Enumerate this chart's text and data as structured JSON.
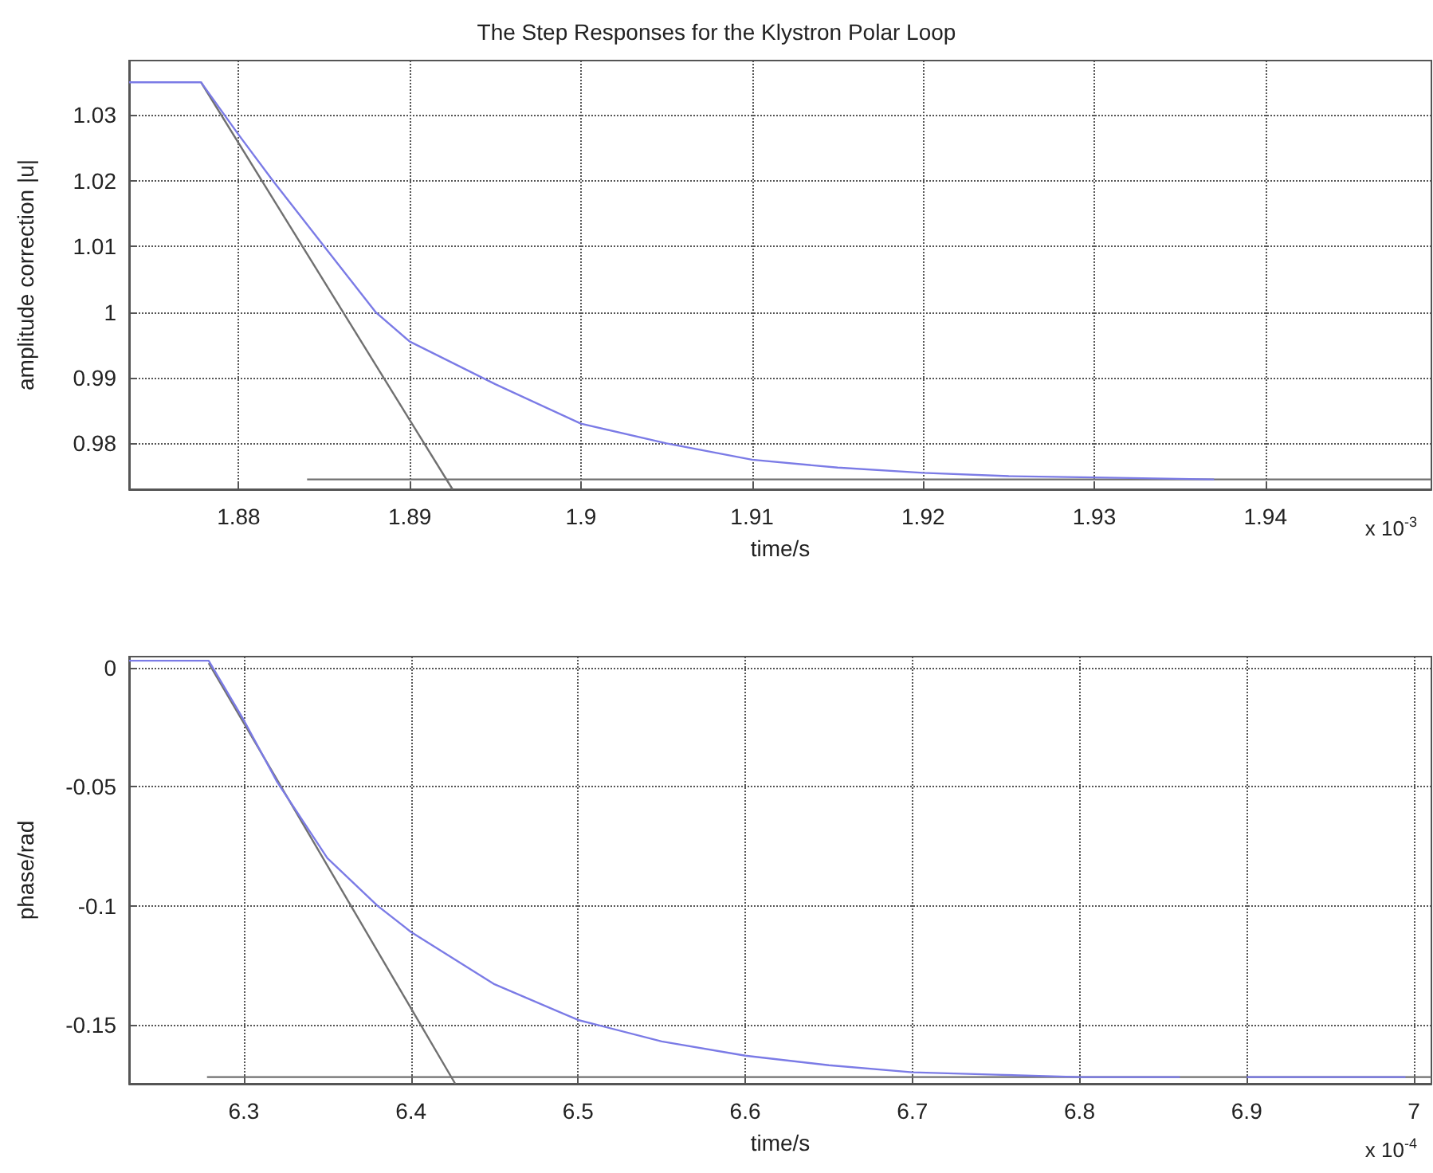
{
  "chart_data": [
    {
      "type": "line",
      "title": "The Step Responses for the Klystron Polar Loop",
      "xlabel": "time/s",
      "ylabel": "amplitude correction |u|",
      "annotations": [
        "x 10$^{-3}$"
      ],
      "xlim": [
        1.8736,
        1.9497
      ],
      "xticks": [
        1.88,
        1.89,
        1.9,
        1.91,
        1.92,
        1.93,
        1.94
      ],
      "ylim": [
        0.973,
        1.0383
      ],
      "yticks": [
        0.98,
        0.99,
        1,
        1.01,
        1.02,
        1.03
      ],
      "grid": true,
      "marker": "none",
      "line_style": "solid",
      "series": [
        {
          "color": "#7b7be6",
          "x": [
            1.8736,
            1.8778,
            1.88,
            1.882,
            1.885,
            1.888,
            1.89,
            1.895,
            1.9,
            1.905,
            1.91,
            1.915,
            1.92,
            1.925,
            1.93,
            1.937
          ],
          "values": [
            1.035,
            1.035,
            1.027,
            1.02,
            1.01,
            1.0,
            0.9955,
            0.989,
            0.983,
            0.98,
            0.9775,
            0.9763,
            0.9755,
            0.975,
            0.9748,
            0.9745
          ]
        },
        {
          "color": "#707070",
          "x": [
            1.8778,
            1.8925
          ],
          "values": [
            1.035,
            0.973
          ]
        },
        {
          "color": "#707070",
          "x": [
            1.884,
            1.9497
          ],
          "values": [
            0.9745,
            0.9745
          ]
        }
      ]
    },
    {
      "type": "line",
      "xlabel": "time/s",
      "ylabel": "phase/rad",
      "annotations": [
        "x 10$^{-4}$"
      ],
      "xlim": [
        6.2314,
        7.0105
      ],
      "xticks": [
        6.3,
        6.4,
        6.5,
        6.6,
        6.7,
        6.8,
        6.9,
        7
      ],
      "ylim": [
        -0.1748,
        0.0047
      ],
      "yticks": [
        -0.15,
        -0.1,
        -0.05,
        0
      ],
      "grid": true,
      "marker": "none",
      "line_style": "solid",
      "series": [
        {
          "color": "#7b7be6",
          "x": [
            6.2314,
            6.279,
            6.3,
            6.32,
            6.35,
            6.38,
            6.4,
            6.45,
            6.5,
            6.55,
            6.6,
            6.65,
            6.7,
            6.75,
            6.8,
            6.86,
            6.88,
            6.9,
            6.995
          ],
          "values": [
            0.003,
            0.003,
            -0.022,
            -0.048,
            -0.08,
            -0.1,
            -0.111,
            -0.133,
            -0.148,
            -0.157,
            -0.163,
            -0.167,
            -0.17,
            -0.171,
            -0.172,
            -0.172,
            null,
            -0.172,
            -0.172
          ]
        },
        {
          "color": "#707070",
          "x": [
            6.279,
            6.4265
          ],
          "values": [
            0.002,
            -0.1748
          ]
        },
        {
          "color": "#707070",
          "x": [
            6.278,
            7.0105
          ],
          "values": [
            -0.172,
            -0.172
          ]
        }
      ]
    }
  ]
}
